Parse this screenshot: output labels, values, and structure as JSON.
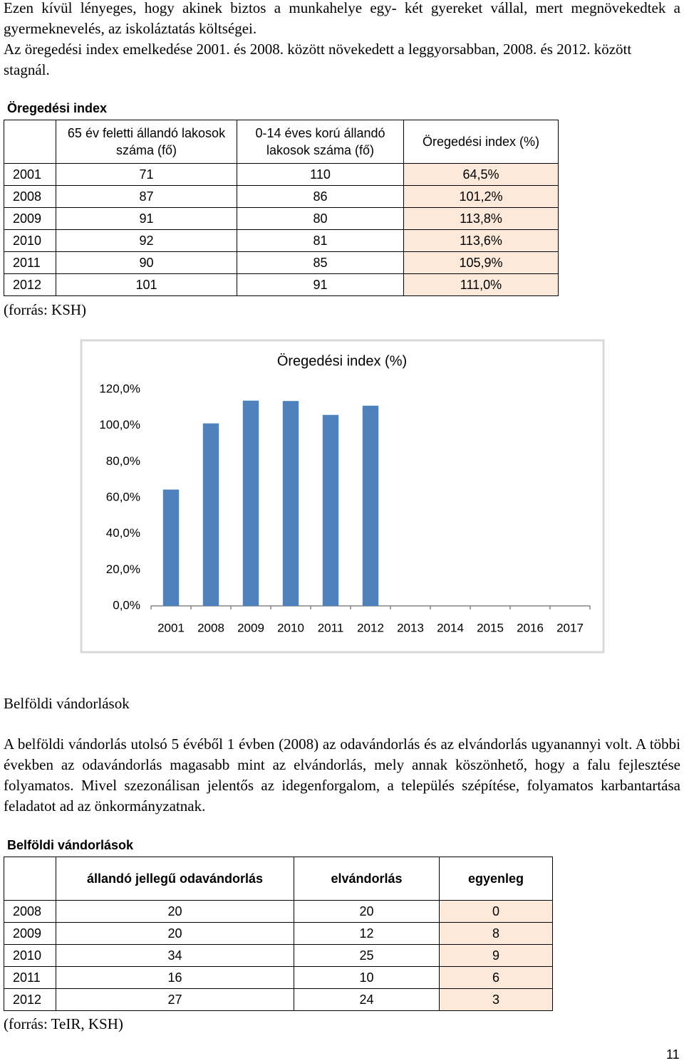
{
  "paragraphs": [
    "Ezen kívül lényeges, hogy akinek biztos a munkahelye egy- két gyereket vállal, mert megnövekedtek a gyermeknevelés, az iskoláztatás költségei.",
    "Az öregedési index emelkedése 2001. és 2008. között növekedett a leggyorsabban, 2008. és 2012. között stagnál."
  ],
  "table1": {
    "title": "Öregedési index",
    "headers": [
      "65 év feletti állandó lakosok száma (fő)",
      "0-14 éves korú állandó lakosok száma (fő)",
      "Öregedési index (%)"
    ],
    "rows": [
      [
        "2001",
        "71",
        "110",
        "64,5%"
      ],
      [
        "2008",
        "87",
        "86",
        "101,2%"
      ],
      [
        "2009",
        "91",
        "80",
        "113,8%"
      ],
      [
        "2010",
        "92",
        "81",
        "113,6%"
      ],
      [
        "2011",
        "90",
        "85",
        "105,9%"
      ],
      [
        "2012",
        "101",
        "91",
        "111,0%"
      ]
    ],
    "source": "(forrás: KSH)"
  },
  "chart_data": {
    "type": "bar",
    "title": "Öregedési index (%)",
    "categories": [
      "2001",
      "2008",
      "2009",
      "2010",
      "2011",
      "2012",
      "2013",
      "2014",
      "2015",
      "2016",
      "2017"
    ],
    "values": [
      64.5,
      101.2,
      113.8,
      113.6,
      105.9,
      111.0,
      null,
      null,
      null,
      null,
      null
    ],
    "color": "#4f81bd",
    "ylim": [
      0,
      120
    ],
    "yticks": [
      {
        "value": 0,
        "label": "0,0%"
      },
      {
        "value": 20,
        "label": "20,0%"
      },
      {
        "value": 40,
        "label": "40,0%"
      },
      {
        "value": 60,
        "label": "60,0%"
      },
      {
        "value": 80,
        "label": "80,0%"
      },
      {
        "value": 100,
        "label": "100,0%"
      },
      {
        "value": 120,
        "label": "120,0%"
      }
    ],
    "grid": false
  },
  "section_heading": "Belföldi vándorlások",
  "paragraph3": "A belföldi vándorlás utolsó 5 évéből 1 évben (2008) az odavándorlás és az elvándorlás ugyanannyi volt. A többi években az odavándorlás magasabb mint az elvándorlás, mely annak köszönhető, hogy a falu fejlesztése folyamatos. Mivel szezonálisan jelentős az idegenforgalom, a település szépítése, folyamatos karbantartása feladatot ad az önkormányzatnak.",
  "table2": {
    "title": "Belföldi vándorlások",
    "headers": [
      "állandó jellegű odavándorlás",
      "elvándorlás",
      "egyenleg"
    ],
    "rows": [
      [
        "2008",
        "20",
        "20",
        "0"
      ],
      [
        "2009",
        "20",
        "12",
        "8"
      ],
      [
        "2010",
        "34",
        "25",
        "9"
      ],
      [
        "2011",
        "16",
        "10",
        "6"
      ],
      [
        "2012",
        "27",
        "24",
        "3"
      ]
    ],
    "source": "(forrás: TeIR, KSH)"
  },
  "page_number": "11"
}
